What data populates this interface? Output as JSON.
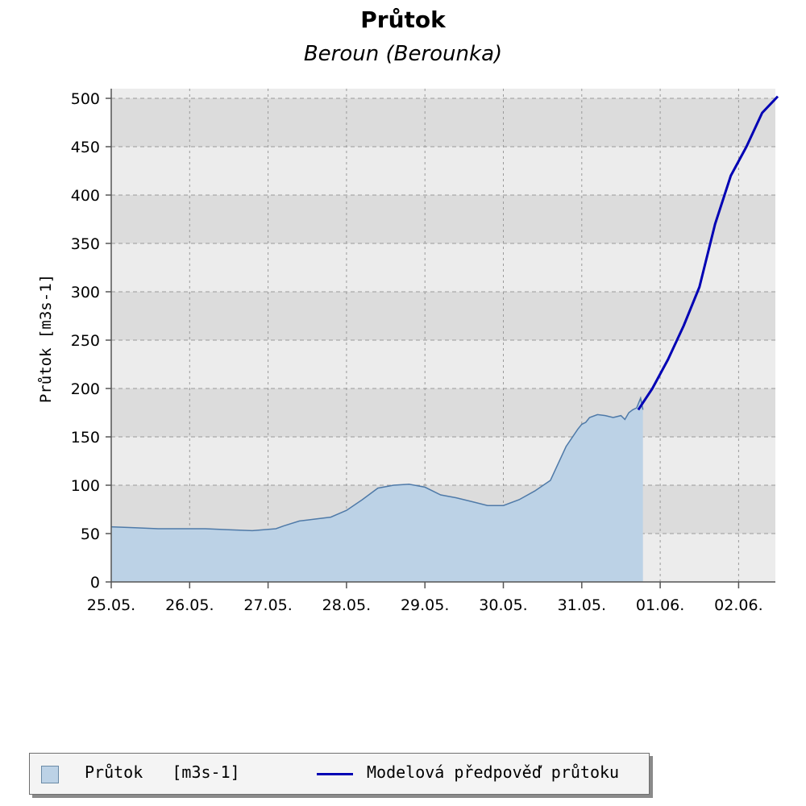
{
  "chart_data": {
    "type": "area",
    "title": "Průtok",
    "subtitle": "Beroun (Berounka)",
    "ylabel": "Průtok [m3s-1]",
    "xlabel": "",
    "ylim": [
      0,
      500
    ],
    "xlim": [
      0,
      8.5
    ],
    "y_ticks": [
      0,
      50,
      100,
      150,
      200,
      250,
      300,
      350,
      400,
      450,
      500
    ],
    "x_tick_labels": [
      "25.05.",
      "26.05.",
      "27.05.",
      "28.05.",
      "29.05.",
      "30.05.",
      "31.05.",
      "01.06.",
      "02.06."
    ],
    "x_unit_note": "days from 25.05.",
    "grid": true,
    "legend_position": "bottom",
    "colors": {
      "observed_fill": "#bcd2e6",
      "observed_line": "#4f7aa8",
      "forecast_line": "#0000b4",
      "band_dark": "#dcdcdc",
      "band_light": "#ececec"
    },
    "series": [
      {
        "name": "Průtok   [m3s-1]",
        "kind": "area",
        "x": [
          0,
          0.3,
          0.6,
          0.9,
          1.2,
          1.5,
          1.8,
          2.1,
          2.2,
          2.4,
          2.6,
          2.8,
          3.0,
          3.2,
          3.4,
          3.6,
          3.8,
          4.0,
          4.2,
          4.4,
          4.6,
          4.8,
          5.0,
          5.2,
          5.4,
          5.6,
          5.8,
          5.95,
          6.0,
          6.05,
          6.1,
          6.2,
          6.3,
          6.4,
          6.5,
          6.55,
          6.6,
          6.65,
          6.7,
          6.75,
          6.78
        ],
        "y": [
          57,
          56,
          55,
          55,
          55,
          54,
          53,
          55,
          58,
          63,
          65,
          67,
          74,
          85,
          97,
          100,
          101,
          98,
          90,
          87,
          83,
          79,
          79,
          85,
          94,
          105,
          140,
          158,
          163,
          165,
          170,
          173,
          172,
          170,
          172,
          168,
          175,
          178,
          180,
          190,
          178
        ]
      },
      {
        "name": "Modelová předpověď průtoku",
        "kind": "line",
        "x": [
          6.72,
          6.9,
          7.1,
          7.3,
          7.5,
          7.7,
          7.9,
          8.1,
          8.3,
          8.5
        ],
        "y": [
          178,
          200,
          230,
          265,
          305,
          370,
          420,
          450,
          485,
          502
        ]
      }
    ]
  }
}
